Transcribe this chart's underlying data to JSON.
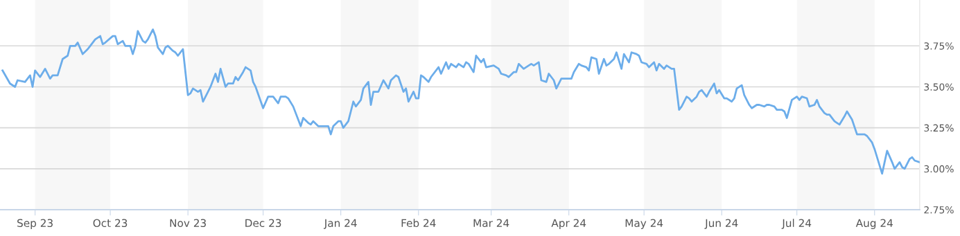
{
  "chart_data": {
    "type": "line",
    "grid": "y",
    "xlim": [
      "2023-08-18",
      "2024-08-19"
    ],
    "xticks": [
      {
        "value": "2023-09-01",
        "label": "Sep 23"
      },
      {
        "value": "2023-10-01",
        "label": "Oct 23"
      },
      {
        "value": "2023-11-01",
        "label": "Nov 23"
      },
      {
        "value": "2023-12-01",
        "label": "Dec 23"
      },
      {
        "value": "2024-01-01",
        "label": "Jan 24"
      },
      {
        "value": "2024-02-01",
        "label": "Feb 24"
      },
      {
        "value": "2024-03-01",
        "label": "Mar 24"
      },
      {
        "value": "2024-04-01",
        "label": "Apr 24"
      },
      {
        "value": "2024-05-01",
        "label": "May 24"
      },
      {
        "value": "2024-06-01",
        "label": "Jun 24"
      },
      {
        "value": "2024-07-01",
        "label": "Jul 24"
      },
      {
        "value": "2024-08-01",
        "label": "Aug 24"
      }
    ],
    "ylim": [
      2.75,
      4.03
    ],
    "yticks": [
      {
        "value": 2.75,
        "label": "2.75%"
      },
      {
        "value": 3.0,
        "label": "3.00%"
      },
      {
        "value": 3.25,
        "label": "3.25%"
      },
      {
        "value": 3.5,
        "label": "3.50%"
      },
      {
        "value": 3.75,
        "label": "3.75%"
      }
    ],
    "bands": [
      {
        "axis": "x",
        "from": "2023-09-01",
        "to": "2023-10-01",
        "label": null,
        "color": "#f7f7f7"
      },
      {
        "axis": "x",
        "from": "2023-11-01",
        "to": "2023-12-01",
        "label": null,
        "color": "#f7f7f7"
      },
      {
        "axis": "x",
        "from": "2024-01-01",
        "to": "2024-02-01",
        "label": null,
        "color": "#f7f7f7"
      },
      {
        "axis": "x",
        "from": "2024-03-01",
        "to": "2024-04-01",
        "label": null,
        "color": "#f7f7f7"
      },
      {
        "axis": "x",
        "from": "2024-05-01",
        "to": "2024-06-01",
        "label": null,
        "color": "#f7f7f7"
      },
      {
        "axis": "x",
        "from": "2024-07-01",
        "to": "2024-08-01",
        "label": null,
        "color": "#f7f7f7"
      }
    ],
    "series": [
      {
        "color": "#6cadea",
        "x": [
          "2023-08-19",
          "2023-08-22",
          "2023-08-24",
          "2023-08-25",
          "2023-08-28",
          "2023-08-30",
          "2023-08-31",
          "2023-09-01",
          "2023-09-03",
          "2023-09-05",
          "2023-09-07",
          "2023-09-08",
          "2023-09-10",
          "2023-09-12",
          "2023-09-14",
          "2023-09-15",
          "2023-09-17",
          "2023-09-18",
          "2023-09-20",
          "2023-09-22",
          "2023-09-23",
          "2023-09-25",
          "2023-09-27",
          "2023-09-28",
          "2023-09-29",
          "2023-10-02",
          "2023-10-03",
          "2023-10-04",
          "2023-10-06",
          "2023-10-07",
          "2023-10-09",
          "2023-10-10",
          "2023-10-11",
          "2023-10-12",
          "2023-10-14",
          "2023-10-15",
          "2023-10-16",
          "2023-10-18",
          "2023-10-19",
          "2023-10-20",
          "2023-10-22",
          "2023-10-23",
          "2023-10-24",
          "2023-10-26",
          "2023-10-27",
          "2023-10-28",
          "2023-10-30",
          "2023-11-01",
          "2023-11-02",
          "2023-11-03",
          "2023-11-05",
          "2023-11-06",
          "2023-11-07",
          "2023-11-09",
          "2023-11-10",
          "2023-11-12",
          "2023-11-13",
          "2023-11-14",
          "2023-11-16",
          "2023-11-17",
          "2023-11-19",
          "2023-11-20",
          "2023-11-21",
          "2023-11-23",
          "2023-11-24",
          "2023-11-26",
          "2023-11-27",
          "2023-11-28",
          "2023-12-01",
          "2023-12-03",
          "2023-12-05",
          "2023-12-07",
          "2023-12-08",
          "2023-12-10",
          "2023-12-11",
          "2023-12-13",
          "2023-12-16",
          "2023-12-17",
          "2023-12-19",
          "2023-12-20",
          "2023-12-21",
          "2023-12-23",
          "2023-12-25",
          "2023-12-27",
          "2023-12-28",
          "2023-12-29",
          "2023-12-31",
          "2024-01-01",
          "2024-01-02",
          "2024-01-04",
          "2024-01-05",
          "2024-01-06",
          "2024-01-07",
          "2024-01-09",
          "2024-01-10",
          "2024-01-12",
          "2024-01-13",
          "2024-01-14",
          "2024-01-16",
          "2024-01-18",
          "2024-01-20",
          "2024-01-21",
          "2024-01-23",
          "2024-01-24",
          "2024-01-26",
          "2024-01-27",
          "2024-01-28",
          "2024-01-30",
          "2024-01-31",
          "2024-02-01",
          "2024-02-02",
          "2024-02-03",
          "2024-02-05",
          "2024-02-06",
          "2024-02-09",
          "2024-02-10",
          "2024-02-12",
          "2024-02-13",
          "2024-02-14",
          "2024-02-16",
          "2024-02-17",
          "2024-02-19",
          "2024-02-20",
          "2024-02-21",
          "2024-02-23",
          "2024-02-24",
          "2024-02-26",
          "2024-02-27",
          "2024-02-28",
          "2024-03-02",
          "2024-03-04",
          "2024-03-05",
          "2024-03-07",
          "2024-03-08",
          "2024-03-10",
          "2024-03-11",
          "2024-03-12",
          "2024-03-14",
          "2024-03-16",
          "2024-03-17",
          "2024-03-18",
          "2024-03-20",
          "2024-03-21",
          "2024-03-23",
          "2024-03-24",
          "2024-03-26",
          "2024-03-27",
          "2024-03-29",
          "2024-04-01",
          "2024-04-02",
          "2024-04-03",
          "2024-04-05",
          "2024-04-06",
          "2024-04-08",
          "2024-04-09",
          "2024-04-10",
          "2024-04-12",
          "2024-04-13",
          "2024-04-15",
          "2024-04-16",
          "2024-04-17",
          "2024-04-19",
          "2024-04-20",
          "2024-04-22",
          "2024-04-23",
          "2024-04-25",
          "2024-04-26",
          "2024-04-28",
          "2024-04-29",
          "2024-04-30",
          "2024-05-02",
          "2024-05-03",
          "2024-05-05",
          "2024-05-06",
          "2024-05-07",
          "2024-05-09",
          "2024-05-10",
          "2024-05-12",
          "2024-05-13",
          "2024-05-15",
          "2024-05-16",
          "2024-05-18",
          "2024-05-19",
          "2024-05-20",
          "2024-05-22",
          "2024-05-23",
          "2024-05-24",
          "2024-05-26",
          "2024-05-27",
          "2024-05-29",
          "2024-05-30",
          "2024-05-31",
          "2024-06-02",
          "2024-06-03",
          "2024-06-05",
          "2024-06-06",
          "2024-06-07",
          "2024-06-09",
          "2024-06-10",
          "2024-06-12",
          "2024-06-13",
          "2024-06-15",
          "2024-06-16",
          "2024-06-18",
          "2024-06-19",
          "2024-06-20",
          "2024-06-22",
          "2024-06-23",
          "2024-06-25",
          "2024-06-26",
          "2024-06-27",
          "2024-06-29",
          "2024-07-01",
          "2024-07-02",
          "2024-07-03",
          "2024-07-05",
          "2024-07-06",
          "2024-07-08",
          "2024-07-09",
          "2024-07-10",
          "2024-07-12",
          "2024-07-13",
          "2024-07-14",
          "2024-07-16",
          "2024-07-17",
          "2024-07-18",
          "2024-07-20",
          "2024-07-21",
          "2024-07-23",
          "2024-07-25",
          "2024-07-28",
          "2024-07-29",
          "2024-07-31",
          "2024-08-01",
          "2024-08-04",
          "2024-08-05",
          "2024-08-06",
          "2024-08-08",
          "2024-08-09",
          "2024-08-11",
          "2024-08-12",
          "2024-08-13",
          "2024-08-15",
          "2024-08-16",
          "2024-08-17",
          "2024-08-19"
        ],
        "values": [
          3.6,
          3.52,
          3.5,
          3.54,
          3.53,
          3.57,
          3.5,
          3.6,
          3.56,
          3.61,
          3.55,
          3.57,
          3.57,
          3.67,
          3.69,
          3.75,
          3.75,
          3.77,
          3.7,
          3.73,
          3.75,
          3.79,
          3.81,
          3.76,
          3.77,
          3.81,
          3.81,
          3.76,
          3.78,
          3.75,
          3.75,
          3.7,
          3.75,
          3.84,
          3.78,
          3.77,
          3.79,
          3.85,
          3.81,
          3.74,
          3.7,
          3.74,
          3.75,
          3.72,
          3.71,
          3.69,
          3.73,
          3.45,
          3.46,
          3.49,
          3.47,
          3.48,
          3.41,
          3.47,
          3.5,
          3.58,
          3.53,
          3.61,
          3.5,
          3.52,
          3.52,
          3.56,
          3.54,
          3.59,
          3.62,
          3.6,
          3.53,
          3.5,
          3.37,
          3.44,
          3.44,
          3.4,
          3.44,
          3.44,
          3.43,
          3.38,
          3.26,
          3.31,
          3.28,
          3.27,
          3.29,
          3.26,
          3.26,
          3.26,
          3.21,
          3.26,
          3.29,
          3.29,
          3.25,
          3.29,
          3.35,
          3.41,
          3.38,
          3.42,
          3.49,
          3.53,
          3.39,
          3.47,
          3.47,
          3.54,
          3.49,
          3.54,
          3.57,
          3.56,
          3.47,
          3.49,
          3.41,
          3.47,
          3.43,
          3.43,
          3.57,
          3.56,
          3.53,
          3.56,
          3.62,
          3.58,
          3.65,
          3.61,
          3.64,
          3.62,
          3.64,
          3.62,
          3.65,
          3.64,
          3.59,
          3.69,
          3.65,
          3.67,
          3.62,
          3.63,
          3.61,
          3.58,
          3.57,
          3.56,
          3.59,
          3.59,
          3.64,
          3.61,
          3.63,
          3.64,
          3.63,
          3.65,
          3.54,
          3.53,
          3.58,
          3.54,
          3.49,
          3.55,
          3.55,
          3.55,
          3.59,
          3.64,
          3.63,
          3.62,
          3.6,
          3.68,
          3.67,
          3.58,
          3.67,
          3.63,
          3.64,
          3.67,
          3.71,
          3.61,
          3.7,
          3.65,
          3.71,
          3.7,
          3.69,
          3.65,
          3.64,
          3.62,
          3.65,
          3.6,
          3.64,
          3.61,
          3.63,
          3.61,
          3.61,
          3.36,
          3.38,
          3.44,
          3.43,
          3.41,
          3.44,
          3.47,
          3.48,
          3.44,
          3.47,
          3.52,
          3.46,
          3.48,
          3.43,
          3.43,
          3.41,
          3.43,
          3.49,
          3.51,
          3.45,
          3.39,
          3.37,
          3.39,
          3.39,
          3.38,
          3.39,
          3.39,
          3.38,
          3.36,
          3.36,
          3.35,
          3.31,
          3.42,
          3.44,
          3.42,
          3.44,
          3.43,
          3.38,
          3.39,
          3.42,
          3.38,
          3.34,
          3.33,
          3.33,
          3.29,
          3.28,
          3.27,
          3.32,
          3.35,
          3.3,
          3.21,
          3.21,
          3.2,
          3.16,
          3.12,
          2.97,
          3.04,
          3.11,
          3.04,
          3.0,
          3.04,
          3.01,
          3.0,
          3.06,
          3.07,
          3.05,
          3.04
        ]
      }
    ]
  }
}
